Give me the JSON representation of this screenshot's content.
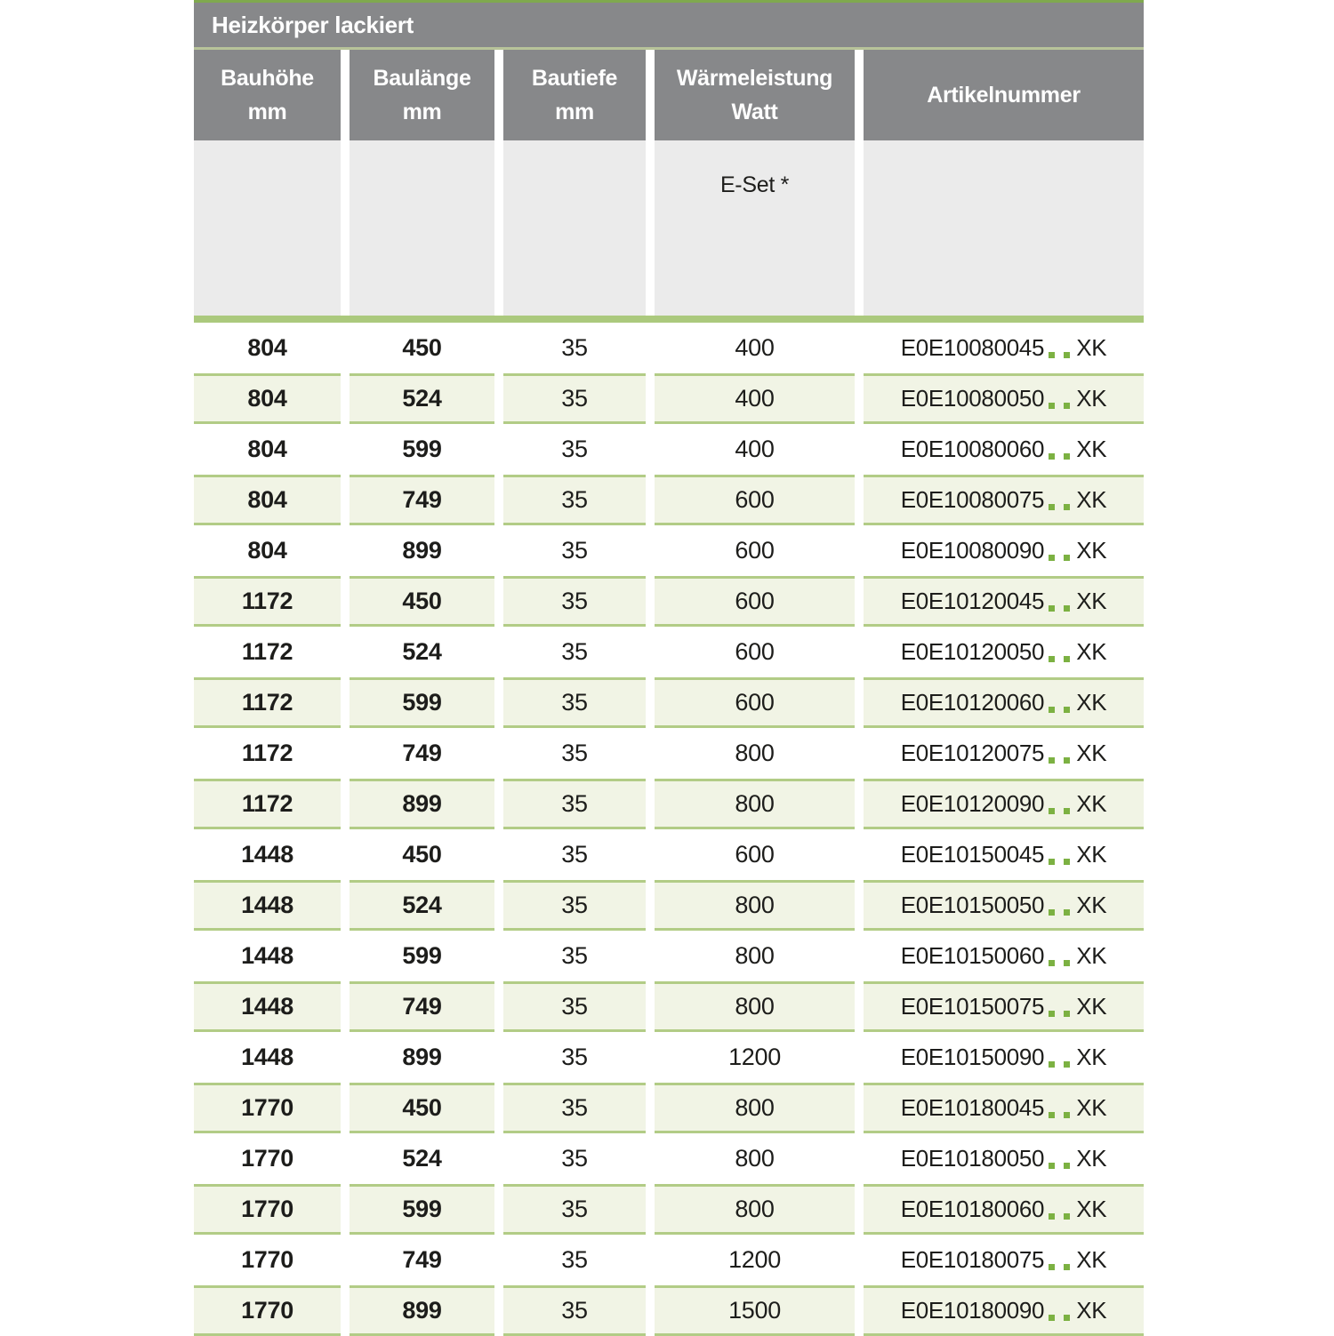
{
  "title": "Heizkörper lackiert",
  "columns": [
    {
      "line1": "Bauhöhe",
      "line2": "mm"
    },
    {
      "line1": "Baulänge",
      "line2": "mm"
    },
    {
      "line1": "Bautiefe",
      "line2": "mm"
    },
    {
      "line1": "Wärmeleistung",
      "line2": "Watt"
    },
    {
      "line1": "Artikelnummer"
    }
  ],
  "subheader": {
    "eset_label": "E-Set *"
  },
  "colors": {
    "top_accent_green": "#7fa94e",
    "header_gray": "#87888a",
    "title_separator_green": "#b7c399",
    "subheader_gray": "#ebebeb",
    "thick_separator_green": "#abc97d",
    "row_alt_background": "#f1f4e5",
    "row_alt_border": "#b2cc86",
    "dot_green": "#7cb142",
    "text_color": "#1d1d1b"
  },
  "rows": [
    {
      "bauhoehe_mm": "804",
      "baulaenge_mm": "450",
      "bautiefe_mm": "35",
      "waermeleistung_watt": "400",
      "artikelnummer_prefix": "E0E10080045",
      "artikelnummer_suffix": "XK"
    },
    {
      "bauhoehe_mm": "804",
      "baulaenge_mm": "524",
      "bautiefe_mm": "35",
      "waermeleistung_watt": "400",
      "artikelnummer_prefix": "E0E10080050",
      "artikelnummer_suffix": "XK"
    },
    {
      "bauhoehe_mm": "804",
      "baulaenge_mm": "599",
      "bautiefe_mm": "35",
      "waermeleistung_watt": "400",
      "artikelnummer_prefix": "E0E10080060",
      "artikelnummer_suffix": "XK"
    },
    {
      "bauhoehe_mm": "804",
      "baulaenge_mm": "749",
      "bautiefe_mm": "35",
      "waermeleistung_watt": "600",
      "artikelnummer_prefix": "E0E10080075",
      "artikelnummer_suffix": "XK"
    },
    {
      "bauhoehe_mm": "804",
      "baulaenge_mm": "899",
      "bautiefe_mm": "35",
      "waermeleistung_watt": "600",
      "artikelnummer_prefix": "E0E10080090",
      "artikelnummer_suffix": "XK"
    },
    {
      "bauhoehe_mm": "1172",
      "baulaenge_mm": "450",
      "bautiefe_mm": "35",
      "waermeleistung_watt": "600",
      "artikelnummer_prefix": "E0E10120045",
      "artikelnummer_suffix": "XK"
    },
    {
      "bauhoehe_mm": "1172",
      "baulaenge_mm": "524",
      "bautiefe_mm": "35",
      "waermeleistung_watt": "600",
      "artikelnummer_prefix": "E0E10120050",
      "artikelnummer_suffix": "XK"
    },
    {
      "bauhoehe_mm": "1172",
      "baulaenge_mm": "599",
      "bautiefe_mm": "35",
      "waermeleistung_watt": "600",
      "artikelnummer_prefix": "E0E10120060",
      "artikelnummer_suffix": "XK"
    },
    {
      "bauhoehe_mm": "1172",
      "baulaenge_mm": "749",
      "bautiefe_mm": "35",
      "waermeleistung_watt": "800",
      "artikelnummer_prefix": "E0E10120075",
      "artikelnummer_suffix": "XK"
    },
    {
      "bauhoehe_mm": "1172",
      "baulaenge_mm": "899",
      "bautiefe_mm": "35",
      "waermeleistung_watt": "800",
      "artikelnummer_prefix": "E0E10120090",
      "artikelnummer_suffix": "XK"
    },
    {
      "bauhoehe_mm": "1448",
      "baulaenge_mm": "450",
      "bautiefe_mm": "35",
      "waermeleistung_watt": "600",
      "artikelnummer_prefix": "E0E10150045",
      "artikelnummer_suffix": "XK"
    },
    {
      "bauhoehe_mm": "1448",
      "baulaenge_mm": "524",
      "bautiefe_mm": "35",
      "waermeleistung_watt": "800",
      "artikelnummer_prefix": "E0E10150050",
      "artikelnummer_suffix": "XK"
    },
    {
      "bauhoehe_mm": "1448",
      "baulaenge_mm": "599",
      "bautiefe_mm": "35",
      "waermeleistung_watt": "800",
      "artikelnummer_prefix": "E0E10150060",
      "artikelnummer_suffix": "XK"
    },
    {
      "bauhoehe_mm": "1448",
      "baulaenge_mm": "749",
      "bautiefe_mm": "35",
      "waermeleistung_watt": "800",
      "artikelnummer_prefix": "E0E10150075",
      "artikelnummer_suffix": "XK"
    },
    {
      "bauhoehe_mm": "1448",
      "baulaenge_mm": "899",
      "bautiefe_mm": "35",
      "waermeleistung_watt": "1200",
      "artikelnummer_prefix": "E0E10150090",
      "artikelnummer_suffix": "XK"
    },
    {
      "bauhoehe_mm": "1770",
      "baulaenge_mm": "450",
      "bautiefe_mm": "35",
      "waermeleistung_watt": "800",
      "artikelnummer_prefix": "E0E10180045",
      "artikelnummer_suffix": "XK"
    },
    {
      "bauhoehe_mm": "1770",
      "baulaenge_mm": "524",
      "bautiefe_mm": "35",
      "waermeleistung_watt": "800",
      "artikelnummer_prefix": "E0E10180050",
      "artikelnummer_suffix": "XK"
    },
    {
      "bauhoehe_mm": "1770",
      "baulaenge_mm": "599",
      "bautiefe_mm": "35",
      "waermeleistung_watt": "800",
      "artikelnummer_prefix": "E0E10180060",
      "artikelnummer_suffix": "XK"
    },
    {
      "bauhoehe_mm": "1770",
      "baulaenge_mm": "749",
      "bautiefe_mm": "35",
      "waermeleistung_watt": "1200",
      "artikelnummer_prefix": "E0E10180075",
      "artikelnummer_suffix": "XK"
    },
    {
      "bauhoehe_mm": "1770",
      "baulaenge_mm": "899",
      "bautiefe_mm": "35",
      "waermeleistung_watt": "1500",
      "artikelnummer_prefix": "E0E10180090",
      "artikelnummer_suffix": "XK"
    }
  ]
}
